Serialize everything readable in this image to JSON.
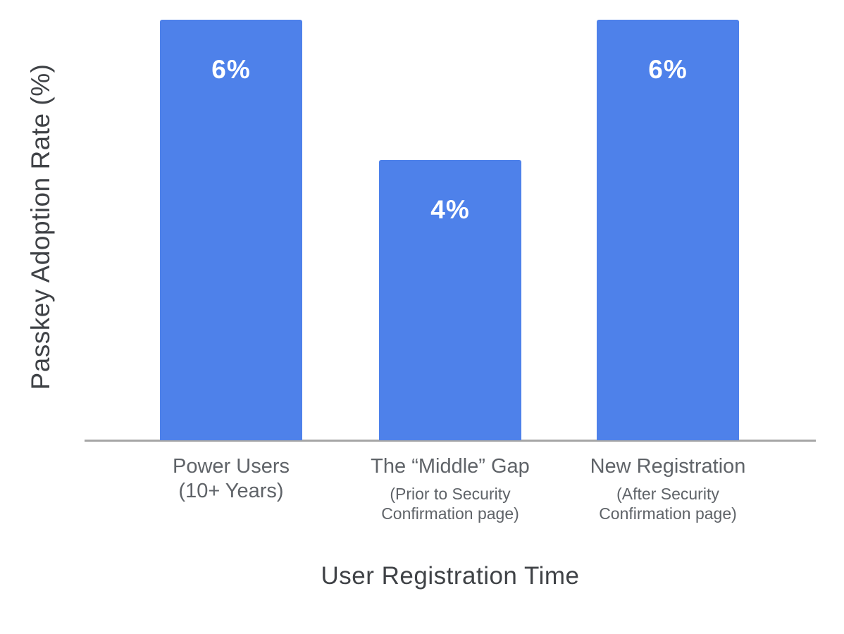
{
  "chart_data": {
    "type": "bar",
    "title": "",
    "xlabel": "User Registration Time",
    "ylabel": "Passkey Adoption Rate (%)",
    "categories": [
      {
        "label": "Power Users\n(10+ Years)",
        "note": ""
      },
      {
        "label": "The “Middle” Gap",
        "note": "(Prior to Security\nConfirmation page)"
      },
      {
        "label": "New Registration",
        "note": "(After Security\nConfirmation page)"
      }
    ],
    "values": [
      6,
      4,
      6
    ],
    "value_labels": [
      "6%",
      "4%",
      "6%"
    ],
    "ylim": [
      0,
      6
    ],
    "grid": false,
    "legend": "none",
    "bar_color": "#4e81ea",
    "axis_line_color": "#a6a6a6",
    "category_text_color": "#5f6368",
    "axis_title_color": "#3f4246",
    "value_label_color": "#ffffff"
  }
}
